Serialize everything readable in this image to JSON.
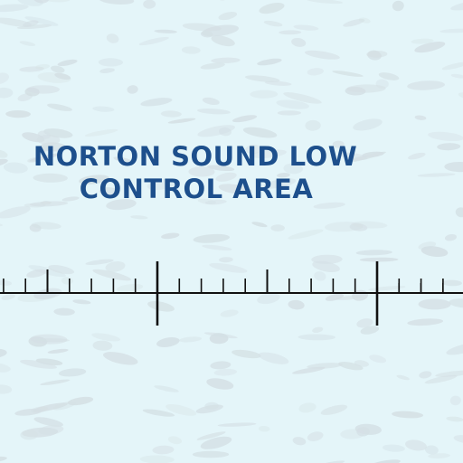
{
  "map": {
    "background_color": "#e4f5f9",
    "texture_color": "#c9d4da",
    "label_color": "#1d4f8c",
    "airspace_label": {
      "line1": "NORTON SOUND LOW",
      "line2": "CONTROL AREA"
    },
    "scale_bar_icon": "tick-scale-bar"
  }
}
